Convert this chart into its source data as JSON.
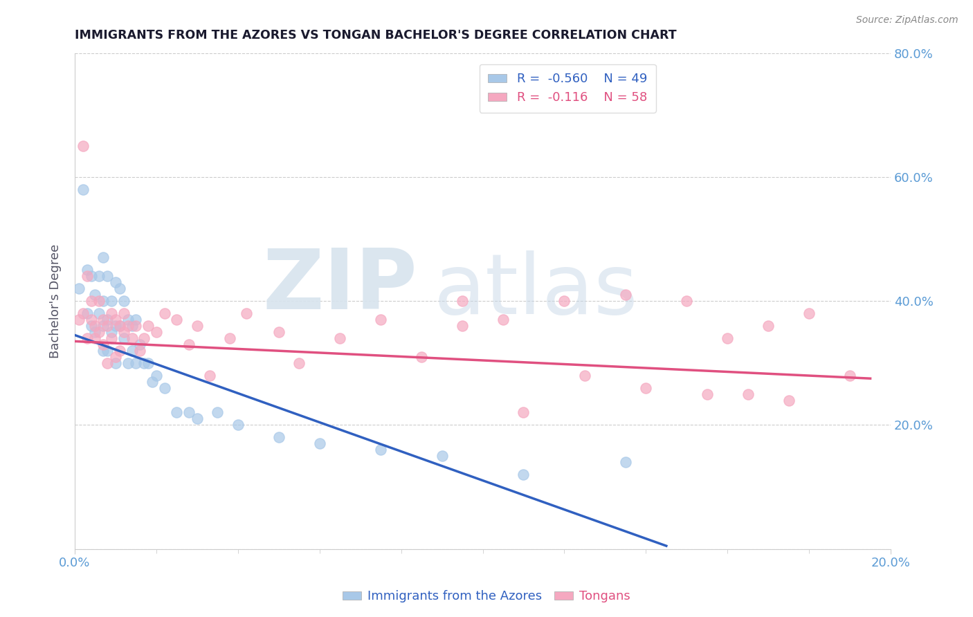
{
  "title": "IMMIGRANTS FROM THE AZORES VS TONGAN BACHELOR'S DEGREE CORRELATION CHART",
  "source": "Source: ZipAtlas.com",
  "ylabel": "Bachelor's Degree",
  "legend_blue_label": "Immigrants from the Azores",
  "legend_pink_label": "Tongans",
  "legend_blue_r": "-0.560",
  "legend_pink_r": "-0.116",
  "legend_blue_n": "49",
  "legend_pink_n": "58",
  "xlim": [
    0.0,
    0.2
  ],
  "ylim": [
    0.0,
    0.8
  ],
  "title_color": "#1a1a2e",
  "blue_color": "#A8C8E8",
  "pink_color": "#F5A8C0",
  "blue_line_color": "#3060C0",
  "pink_line_color": "#E05080",
  "axis_color": "#5B9BD5",
  "grid_color": "#C0C0C0",
  "blue_scatter_x": [
    0.001,
    0.002,
    0.003,
    0.003,
    0.004,
    0.004,
    0.005,
    0.005,
    0.006,
    0.006,
    0.007,
    0.007,
    0.007,
    0.007,
    0.008,
    0.008,
    0.008,
    0.009,
    0.009,
    0.01,
    0.01,
    0.01,
    0.011,
    0.011,
    0.012,
    0.012,
    0.013,
    0.013,
    0.014,
    0.014,
    0.015,
    0.015,
    0.016,
    0.017,
    0.018,
    0.019,
    0.02,
    0.022,
    0.025,
    0.028,
    0.03,
    0.035,
    0.04,
    0.05,
    0.06,
    0.075,
    0.09,
    0.11,
    0.135
  ],
  "blue_scatter_y": [
    0.42,
    0.58,
    0.45,
    0.38,
    0.44,
    0.36,
    0.41,
    0.35,
    0.44,
    0.38,
    0.47,
    0.4,
    0.36,
    0.32,
    0.44,
    0.37,
    0.32,
    0.4,
    0.35,
    0.43,
    0.36,
    0.3,
    0.42,
    0.36,
    0.4,
    0.34,
    0.37,
    0.3,
    0.36,
    0.32,
    0.37,
    0.3,
    0.33,
    0.3,
    0.3,
    0.27,
    0.28,
    0.26,
    0.22,
    0.22,
    0.21,
    0.22,
    0.2,
    0.18,
    0.17,
    0.16,
    0.15,
    0.12,
    0.14
  ],
  "pink_scatter_x": [
    0.001,
    0.002,
    0.002,
    0.003,
    0.003,
    0.004,
    0.004,
    0.005,
    0.005,
    0.006,
    0.006,
    0.007,
    0.007,
    0.008,
    0.008,
    0.009,
    0.009,
    0.01,
    0.01,
    0.011,
    0.011,
    0.012,
    0.012,
    0.013,
    0.014,
    0.015,
    0.016,
    0.017,
    0.018,
    0.02,
    0.022,
    0.025,
    0.028,
    0.03,
    0.033,
    0.038,
    0.042,
    0.05,
    0.055,
    0.065,
    0.075,
    0.085,
    0.095,
    0.105,
    0.12,
    0.135,
    0.15,
    0.16,
    0.17,
    0.18,
    0.19,
    0.095,
    0.11,
    0.125,
    0.14,
    0.155,
    0.165,
    0.175
  ],
  "pink_scatter_y": [
    0.37,
    0.38,
    0.65,
    0.34,
    0.44,
    0.37,
    0.4,
    0.36,
    0.34,
    0.4,
    0.35,
    0.37,
    0.33,
    0.36,
    0.3,
    0.38,
    0.34,
    0.37,
    0.31,
    0.36,
    0.32,
    0.35,
    0.38,
    0.36,
    0.34,
    0.36,
    0.32,
    0.34,
    0.36,
    0.35,
    0.38,
    0.37,
    0.33,
    0.36,
    0.28,
    0.34,
    0.38,
    0.35,
    0.3,
    0.34,
    0.37,
    0.31,
    0.4,
    0.37,
    0.4,
    0.41,
    0.4,
    0.34,
    0.36,
    0.38,
    0.28,
    0.36,
    0.22,
    0.28,
    0.26,
    0.25,
    0.25,
    0.24
  ],
  "blue_line_x": [
    0.0,
    0.145
  ],
  "blue_line_y": [
    0.345,
    0.005
  ],
  "pink_line_x": [
    0.0,
    0.195
  ],
  "pink_line_y": [
    0.335,
    0.275
  ]
}
